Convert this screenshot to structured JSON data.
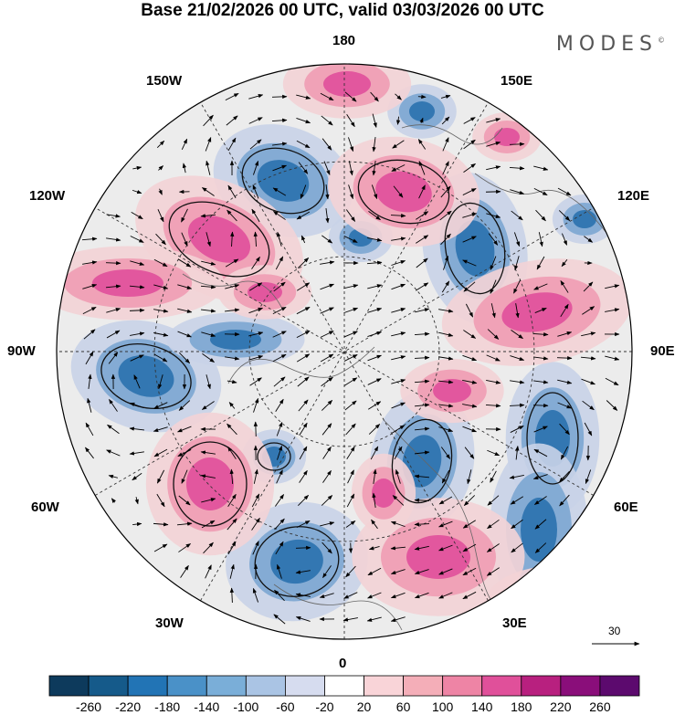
{
  "title": "Base 21/02/2026 00 UTC, valid 03/03/2026 00 UTC",
  "brand": "MODES",
  "brand_mark": "©",
  "longitude_labels": {
    "top": "180",
    "bottom": "0",
    "left": "90W",
    "right": "90E",
    "upper_left_1": "150W",
    "upper_left_2": "120W",
    "upper_right_1": "150E",
    "upper_right_2": "120E",
    "lower_left_1": "60W",
    "lower_left_2": "30W",
    "lower_right_1": "60E",
    "lower_right_2": "30E"
  },
  "reference_vector": "30",
  "colorbar": {
    "ticks": [
      "-260",
      "-220",
      "-180",
      "-140",
      "-100",
      "-60",
      "-20",
      "20",
      "60",
      "100",
      "140",
      "180",
      "220",
      "260"
    ],
    "colors": [
      "#0d3a5c",
      "#155a8a",
      "#2274b5",
      "#4a91c8",
      "#7aaed8",
      "#aac4e4",
      "#d6dcef",
      "#ffffff",
      "#f9d4d8",
      "#f4aeb8",
      "#ee84a5",
      "#e0509a",
      "#b8207f",
      "#8a0e7a",
      "#5c0a6e"
    ]
  },
  "colors": {
    "negative_strong": "#2e74b0",
    "negative_mid": "#7fa9d3",
    "negative_light": "#c9d3e8",
    "positive_light": "#f3d3d6",
    "positive_mid": "#ef9fb5",
    "positive_strong": "#e0539c",
    "neutral": "#ececec"
  }
}
